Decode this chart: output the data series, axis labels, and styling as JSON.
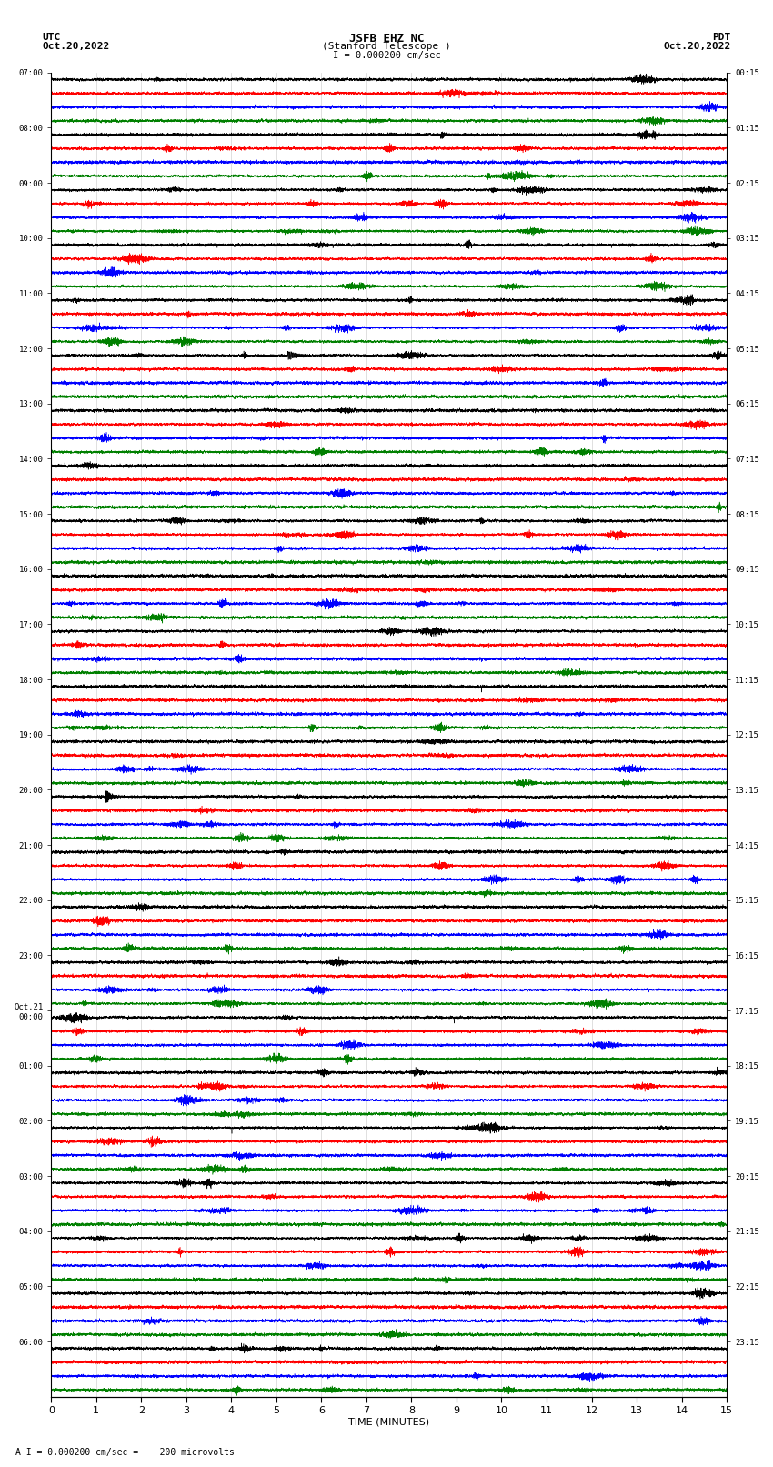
{
  "title_line1": "JSFB EHZ NC",
  "title_line2": "(Stanford Telescope )",
  "scale_label": "I = 0.000200 cm/sec",
  "left_header": "UTC",
  "left_date": "Oct.20,2022",
  "right_header": "PDT",
  "right_date": "Oct.20,2022",
  "xlabel": "TIME (MINUTES)",
  "bottom_note": "A I = 0.000200 cm/sec =    200 microvolts",
  "utc_times": [
    "07:00",
    "08:00",
    "09:00",
    "10:00",
    "11:00",
    "12:00",
    "13:00",
    "14:00",
    "15:00",
    "16:00",
    "17:00",
    "18:00",
    "19:00",
    "20:00",
    "21:00",
    "22:00",
    "23:00",
    "Oct.21\n00:00",
    "01:00",
    "02:00",
    "03:00",
    "04:00",
    "05:00",
    "06:00"
  ],
  "pdt_times": [
    "00:15",
    "01:15",
    "02:15",
    "03:15",
    "04:15",
    "05:15",
    "06:15",
    "07:15",
    "08:15",
    "09:15",
    "10:15",
    "11:15",
    "12:15",
    "13:15",
    "14:15",
    "15:15",
    "16:15",
    "17:15",
    "18:15",
    "19:15",
    "20:15",
    "21:15",
    "22:15",
    "23:15"
  ],
  "n_rows": 24,
  "traces_per_row": 4,
  "colors": [
    "black",
    "red",
    "blue",
    "green"
  ],
  "bg_color": "white",
  "xmin": 0,
  "xmax": 15,
  "xticks": [
    0,
    1,
    2,
    3,
    4,
    5,
    6,
    7,
    8,
    9,
    10,
    11,
    12,
    13,
    14,
    15
  ]
}
